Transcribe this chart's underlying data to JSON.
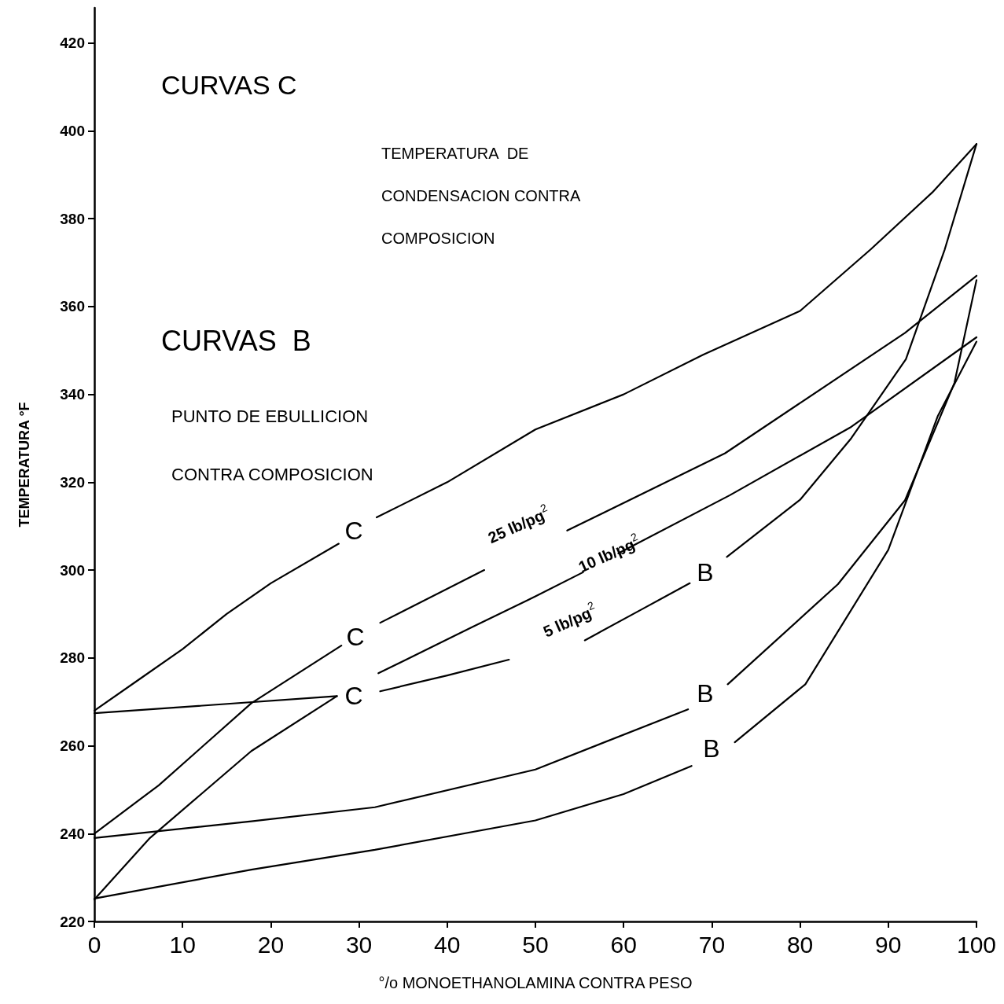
{
  "chart_data": {
    "type": "line",
    "xlabel": "°/o MONOETHANOLAMINA CONTRA PESO",
    "ylabel": "TEMPERATURA °F",
    "xlim": [
      0,
      100
    ],
    "xticks": [
      0,
      10,
      20,
      30,
      40,
      50,
      60,
      70,
      80,
      90,
      100
    ],
    "ylim": [
      220,
      428
    ],
    "yticks": [
      220,
      240,
      260,
      280,
      300,
      320,
      340,
      360,
      380,
      400,
      420
    ],
    "grid": false,
    "marker": "none",
    "line_style": "solid",
    "series": [
      {
        "color": "#000000",
        "x": [
          0,
          5,
          10,
          15,
          20,
          27.7,
          29,
          32,
          40,
          50,
          60,
          69,
          80,
          88,
          95,
          100
        ],
        "values": [
          268,
          275,
          282,
          290,
          297,
          306,
          null,
          312,
          320,
          332,
          340,
          349,
          359,
          373,
          386,
          397
        ]
      },
      {
        "color": "#000000",
        "x": [
          0,
          7.3,
          17.8,
          28,
          29,
          32.4,
          44.2,
          48,
          53.6,
          71.5,
          91.9,
          100
        ],
        "values": [
          240,
          251,
          269.7,
          282.8,
          null,
          288,
          300,
          null,
          309,
          326.6,
          354,
          367
        ]
      },
      {
        "color": "#000000",
        "x": [
          0,
          27.5
        ],
        "values": [
          267.4,
          271.3
        ]
      },
      {
        "color": "#000000",
        "x": [
          0,
          6.3,
          17.8,
          27.5
        ],
        "values": [
          225,
          239,
          258.8,
          271.3
        ]
      },
      {
        "color": "#000000",
        "x": [
          32.2,
          42.8,
          50,
          55.4,
          57,
          59.4,
          72,
          85.8,
          100
        ],
        "values": [
          276.5,
          287,
          294,
          299.5,
          null,
          303.8,
          317,
          332.6,
          353
        ]
      },
      {
        "color": "#000000",
        "x": [
          32.4,
          40,
          47,
          50,
          55.6,
          62,
          67.5,
          69,
          71.7,
          80,
          85.8,
          92,
          96.4,
          100
        ],
        "values": [
          272.4,
          276,
          279.6,
          null,
          284,
          291,
          297,
          null,
          303,
          316,
          330,
          348,
          373,
          397
        ]
      },
      {
        "color": "#000000",
        "x": [
          0,
          17.8,
          31.8,
          50,
          67.3,
          69,
          71.8,
          84.3,
          91.9,
          97.5,
          100
        ],
        "values": [
          239,
          242.8,
          246,
          254.6,
          268.3,
          null,
          274,
          296.8,
          315.9,
          342.6,
          366
        ]
      },
      {
        "color": "#000000",
        "x": [
          0,
          17.8,
          31.8,
          50,
          60,
          67.7,
          69,
          72.6,
          80.6,
          90,
          95.6,
          100
        ],
        "values": [
          225.2,
          231.8,
          236.3,
          243,
          249,
          255.4,
          null,
          260.8,
          274,
          304.6,
          335,
          352
        ]
      }
    ],
    "annotations": [
      "CURVAS C",
      "TEMPERATURA  DE CONDENSACION CONTRA COMPOSICION",
      "CURVAS  B",
      "PUNTO DE EBULLICION CONTRA COMPOSICION",
      "C",
      "C",
      "C",
      "B",
      "B",
      "B",
      "25 lb/pg$^{2}$",
      "10 lb/pg$^{2}$",
      "5 lb/pg$^{2}$"
    ]
  }
}
